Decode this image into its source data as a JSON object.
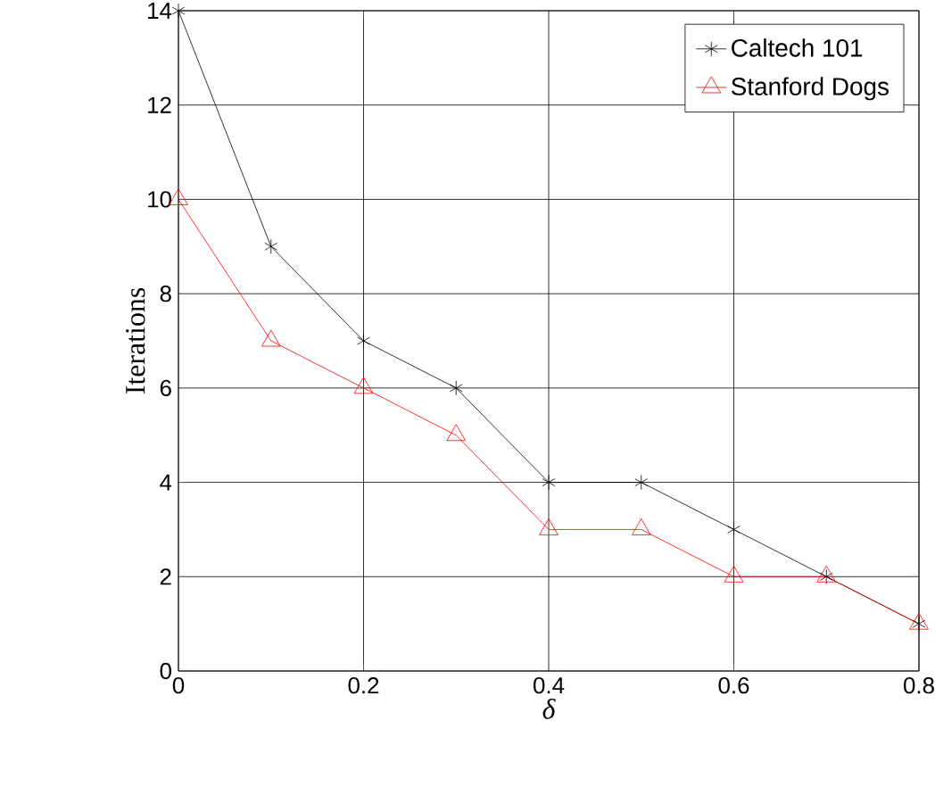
{
  "chart_data": {
    "type": "line",
    "xlabel": "δ",
    "ylabel": "Iterations",
    "x": [
      0,
      0.1,
      0.2,
      0.3,
      0.4,
      0.5,
      0.6,
      0.7,
      0.8
    ],
    "series": [
      {
        "name": "Caltech 101",
        "color": "#000000",
        "marker": "cross",
        "values": [
          14,
          9,
          7,
          6,
          4,
          4,
          3,
          2,
          1
        ]
      },
      {
        "name": "Stanford Dogs",
        "color": "#ff0000",
        "marker": "triangle",
        "values": [
          10,
          7,
          6,
          5,
          3,
          3,
          2,
          2,
          1
        ]
      }
    ],
    "xlim": [
      0,
      0.8
    ],
    "ylim": [
      0,
      14
    ],
    "xticks": [
      0,
      0.2,
      0.4,
      0.6,
      0.8
    ],
    "yticks": [
      0,
      2,
      4,
      6,
      8,
      10,
      12,
      14
    ],
    "grid": true,
    "legend": "top right",
    "line_style": "solid"
  }
}
